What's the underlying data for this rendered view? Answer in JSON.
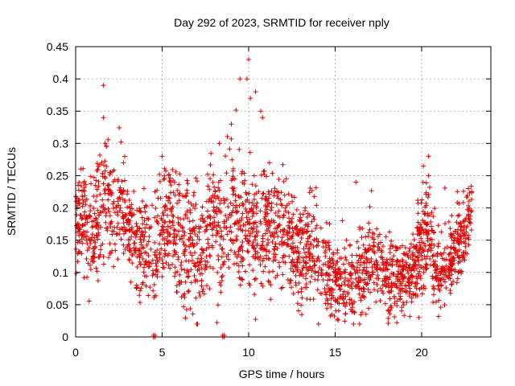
{
  "chart_data": {
    "type": "scatter",
    "title": "Day 292 of 2023, SRMTID for receiver nply",
    "xlabel": "GPS time / hours",
    "ylabel": "SRMTID / TECUs",
    "xlim": [
      0,
      24
    ],
    "ylim": [
      0,
      0.45
    ],
    "grid": true,
    "marker": "plus",
    "marker_color": "#e00000",
    "x_ticks": [
      {
        "value": 0,
        "label": "0"
      },
      {
        "value": 5,
        "label": "5"
      },
      {
        "value": 10,
        "label": "10"
      },
      {
        "value": 15,
        "label": "15"
      },
      {
        "value": 20,
        "label": "20"
      }
    ],
    "y_ticks": [
      {
        "value": 0,
        "label": "0"
      },
      {
        "value": 0.05,
        "label": "0.05"
      },
      {
        "value": 0.1,
        "label": "0.1"
      },
      {
        "value": 0.15,
        "label": "0.15"
      },
      {
        "value": 0.2,
        "label": "0.2"
      },
      {
        "value": 0.25,
        "label": "0.25"
      },
      {
        "value": 0.3,
        "label": "0.3"
      },
      {
        "value": 0.35,
        "label": "0.35"
      },
      {
        "value": 0.4,
        "label": "0.4"
      },
      {
        "value": 0.45,
        "label": "0.45"
      }
    ],
    "envelope": {
      "description": "Approximate median and spread of the dense SRMTID point cloud, in data units",
      "hours": [
        0.0,
        0.5,
        1.0,
        1.5,
        2.0,
        2.5,
        3.0,
        3.5,
        4.0,
        4.5,
        5.0,
        5.5,
        6.0,
        6.5,
        7.0,
        7.5,
        8.0,
        8.5,
        9.0,
        9.5,
        10.0,
        10.5,
        11.0,
        11.5,
        12.0,
        12.5,
        13.0,
        13.5,
        14.0,
        14.5,
        15.0,
        15.5,
        16.0,
        16.5,
        17.0,
        17.5,
        18.0,
        18.5,
        19.0,
        19.5,
        20.0,
        20.5,
        21.0,
        21.5,
        22.0,
        22.5,
        22.9
      ],
      "median": [
        0.18,
        0.19,
        0.15,
        0.22,
        0.19,
        0.19,
        0.17,
        0.14,
        0.15,
        0.12,
        0.17,
        0.19,
        0.14,
        0.15,
        0.12,
        0.15,
        0.18,
        0.14,
        0.2,
        0.17,
        0.17,
        0.15,
        0.18,
        0.15,
        0.17,
        0.13,
        0.13,
        0.14,
        0.13,
        0.1,
        0.08,
        0.09,
        0.08,
        0.1,
        0.11,
        0.12,
        0.1,
        0.09,
        0.08,
        0.1,
        0.14,
        0.16,
        0.09,
        0.11,
        0.14,
        0.16,
        0.2
      ],
      "spread": [
        0.04,
        0.04,
        0.04,
        0.05,
        0.04,
        0.04,
        0.04,
        0.04,
        0.04,
        0.04,
        0.04,
        0.04,
        0.05,
        0.05,
        0.05,
        0.04,
        0.05,
        0.05,
        0.05,
        0.05,
        0.05,
        0.05,
        0.05,
        0.04,
        0.04,
        0.04,
        0.04,
        0.04,
        0.04,
        0.03,
        0.03,
        0.03,
        0.03,
        0.03,
        0.03,
        0.03,
        0.03,
        0.03,
        0.03,
        0.03,
        0.04,
        0.04,
        0.03,
        0.03,
        0.03,
        0.03,
        0.03
      ]
    },
    "notable_points": [
      {
        "x": 1.6,
        "y": 0.39
      },
      {
        "x": 1.6,
        "y": 0.34
      },
      {
        "x": 1.7,
        "y": 0.3
      },
      {
        "x": 5.0,
        "y": 0.28
      },
      {
        "x": 8.3,
        "y": 0.3
      },
      {
        "x": 9.0,
        "y": 0.33
      },
      {
        "x": 9.5,
        "y": 0.4
      },
      {
        "x": 9.9,
        "y": 0.4
      },
      {
        "x": 10.0,
        "y": 0.43
      },
      {
        "x": 10.1,
        "y": 0.37
      },
      {
        "x": 10.4,
        "y": 0.38
      },
      {
        "x": 10.7,
        "y": 0.35
      },
      {
        "x": 10.8,
        "y": 0.34
      },
      {
        "x": 11.2,
        "y": 0.27
      },
      {
        "x": 16.2,
        "y": 0.24
      },
      {
        "x": 20.4,
        "y": 0.28
      },
      {
        "x": 20.4,
        "y": 0.25
      },
      {
        "x": 22.7,
        "y": 0.23
      }
    ],
    "zero_points": [
      {
        "x": 4.5,
        "y": 0.0
      },
      {
        "x": 8.5,
        "y": 0.0
      }
    ]
  }
}
